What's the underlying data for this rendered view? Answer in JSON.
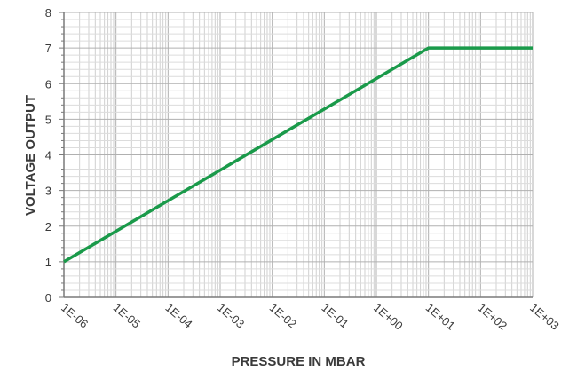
{
  "chart_data": {
    "type": "line",
    "title": "",
    "xlabel": "PRESSURE IN MBAR",
    "ylabel": "VOLTAGE OUTPUT",
    "x_scale": "log",
    "xlim": [
      1e-06,
      1000
    ],
    "ylim": [
      0,
      8
    ],
    "x_tick_labels": [
      "1E-06",
      "1E-05",
      "1E-04",
      "1E-03",
      "1E-02",
      "1E-01",
      "1E+00",
      "1E+01",
      "1E+02",
      "1E+03"
    ],
    "y_tick_labels": [
      "0",
      "1",
      "2",
      "3",
      "4",
      "5",
      "6",
      "7",
      "8"
    ],
    "grid": true,
    "legend": "none",
    "series": [
      {
        "color": "#1a9a4a",
        "points": [
          {
            "x": 1e-06,
            "y": 1
          },
          {
            "x": 10,
            "y": 7
          },
          {
            "x": 1000,
            "y": 7
          }
        ]
      }
    ]
  }
}
